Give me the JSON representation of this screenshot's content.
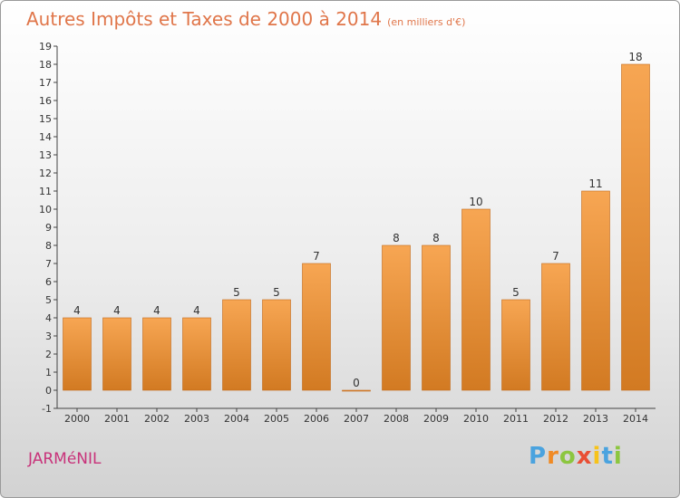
{
  "title": "Autres Impôts et Taxes de 2000 à 2014",
  "subtitle": "(en milliers d'€)",
  "commune": "JARMéNIL",
  "logo": {
    "letters": [
      "P",
      "r",
      "o",
      "x",
      "i",
      "t",
      "i"
    ],
    "colors": [
      "#4aa3df",
      "#f08a24",
      "#8cc63f",
      "#e94f35",
      "#f7c31a",
      "#4aa3df",
      "#8cc63f"
    ]
  },
  "colors": {
    "bar_light": "#f7a653",
    "bar_dark": "#d27a22",
    "accent": "#e0764a"
  },
  "chart_data": {
    "type": "bar",
    "categories": [
      "2000",
      "2001",
      "2002",
      "2003",
      "2004",
      "2005",
      "2006",
      "2007",
      "2008",
      "2009",
      "2010",
      "2011",
      "2012",
      "2013",
      "2014"
    ],
    "values": [
      4,
      4,
      4,
      4,
      5,
      5,
      7,
      0,
      8,
      8,
      10,
      5,
      7,
      11,
      18
    ],
    "data_labels": [
      "4",
      "4",
      "4",
      "4",
      "5",
      "5",
      "7",
      "0",
      "8",
      "8",
      "10",
      "5",
      "7",
      "11",
      "18"
    ],
    "y_ticks": [
      "-1",
      "0",
      "",
      "1",
      "2",
      "3",
      "4",
      "5",
      "6",
      "7",
      "8",
      "9",
      "10",
      "11",
      "12",
      "13",
      "14",
      "15",
      "16",
      "17",
      "18",
      "19"
    ],
    "ylim": [
      -1,
      19
    ],
    "grid": false,
    "title": "Autres Impôts et Taxes de 2000 à 2014"
  }
}
